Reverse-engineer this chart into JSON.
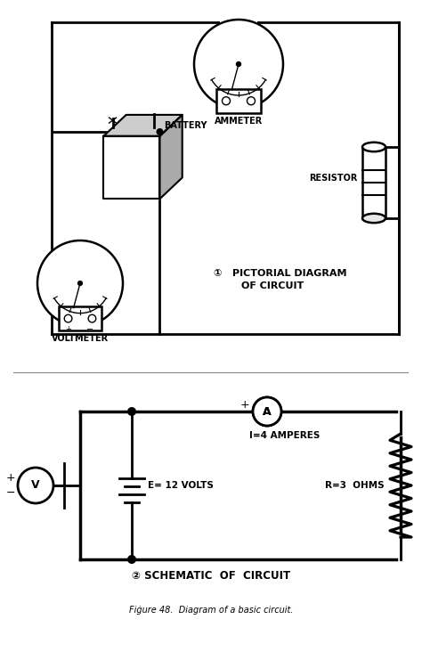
{
  "background_color": "#ffffff",
  "line_color": "#000000",
  "lw": 2.0,
  "fig_width": 4.74,
  "fig_height": 7.32,
  "caption": "Fiġure 48.  Diagram of a basic circuit.",
  "label1": "①   PICTORIAL DIAGRAM\n        OF CIRCUIT",
  "label2": "② SCHEMATIC  OF  CIRCUIT",
  "ammeter_label": "AMMETER",
  "battery_label": "BATTERY",
  "resistor_label": "RESISTOR",
  "voltmeter_label": "VOLTMETER",
  "amperes_label": "I=4 AMPERES",
  "volts_label": "E= 12 VOLTS",
  "ohms_label": "R=3  OHMS"
}
